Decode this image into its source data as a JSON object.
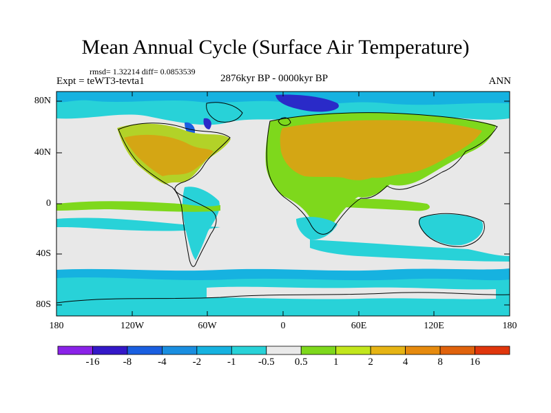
{
  "title": "Mean Annual Cycle (Surface Air Temperature)",
  "stats": "rmsd= 1.32214 diff= 0.0853539",
  "experiment": "Expt = teWT3-tevta1",
  "period": "2876kyr BP - 0000kyr BP",
  "season": "ANN",
  "map": {
    "lat_labels": [
      "80N",
      "40N",
      "0",
      "40S",
      "80S"
    ],
    "lon_labels": [
      "180",
      "120W",
      "60W",
      "0",
      "60E",
      "120E",
      "180"
    ]
  },
  "colorbar": {
    "labels": [
      "-16",
      "-8",
      "-4",
      "-2",
      "-1",
      "-0.5",
      "0.5",
      "1",
      "2",
      "4",
      "8",
      "16"
    ],
    "colors": [
      "#8a22e8",
      "#3418c8",
      "#1a5fe0",
      "#1a8ee0",
      "#16b2e0",
      "#28d2d8",
      "#eaeaea",
      "#7ed81c",
      "#c2e61c",
      "#e6b414",
      "#e68a0e",
      "#e0620c",
      "#e0360c"
    ]
  },
  "palette": {
    "neutral": "#e8e8e8",
    "land_warm": "#d4a614",
    "land_mid": "#b2d228",
    "land_light": "#7ed81c",
    "ocean_light": "#28d2d8",
    "ocean_mid": "#16b2e0",
    "ocean_deep": "#1a8ee0",
    "cold": "#2a2ac8",
    "coast": "#000000"
  }
}
